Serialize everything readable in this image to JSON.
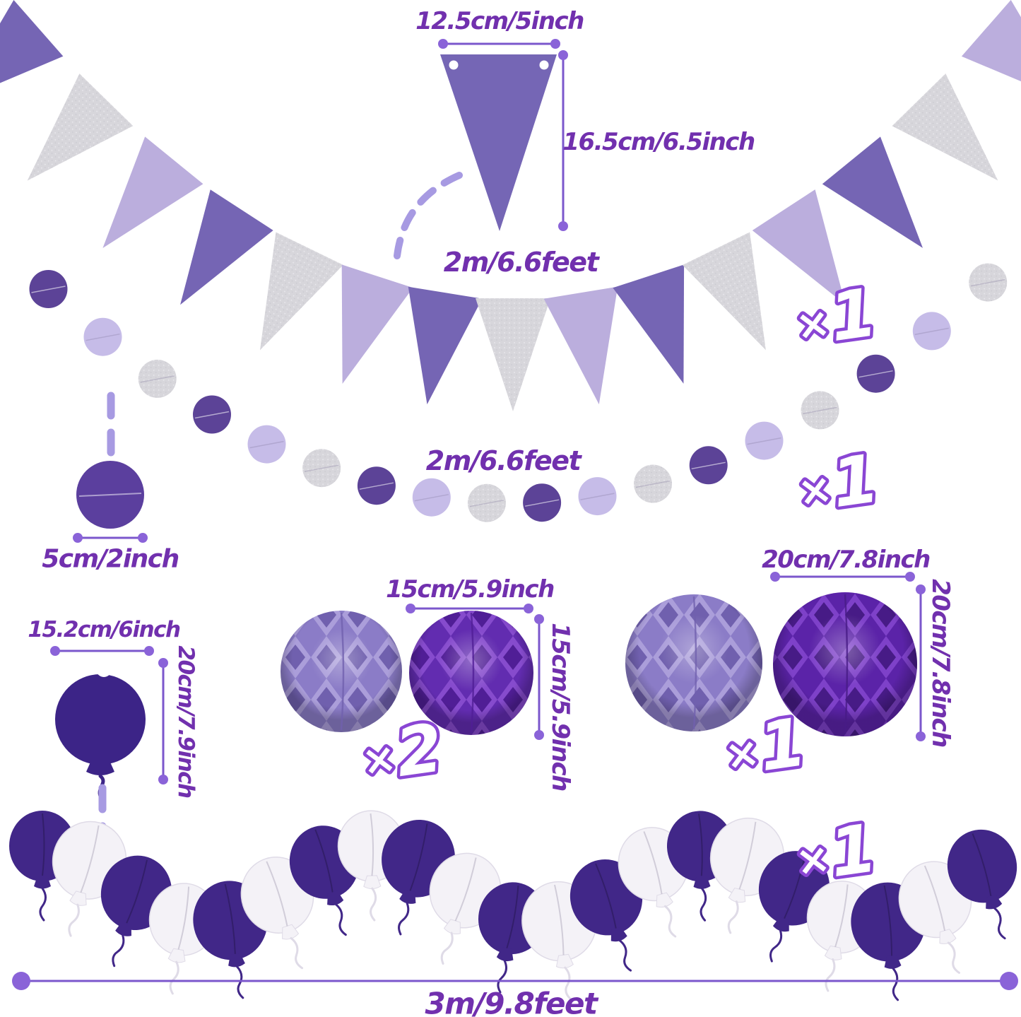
{
  "labels": {
    "flag_width": "12.5cm/5inch",
    "flag_height": "16.5cm/6.5inch",
    "banner_length": "2m/6.6feet",
    "dot_garland_length": "2m/6.6feet",
    "dot_size": "5cm/2inch",
    "cutout_width": "15.2cm/6inch",
    "cutout_height": "20cm/7.9inch",
    "honeycomb_small_width": "15cm/5.9inch",
    "honeycomb_small_height": "15cm/5.9inch",
    "honeycomb_large_width": "20cm/7.8inch",
    "honeycomb_large_height": "20cm/7.8inch",
    "balloon_garland_length": "3m/9.8feet"
  },
  "counts": {
    "banner": "×1",
    "dot_garland": "×1",
    "honeycomb_small": "×2",
    "honeycomb_large": "×1",
    "balloon_garland": "×1"
  },
  "banner": {
    "flag_count": 15,
    "cycle": [
      "purple",
      "silver",
      "lavender"
    ]
  },
  "dot_garland": {
    "dot_count": 18,
    "cycle": [
      "purple",
      "lavender",
      "silver"
    ],
    "dot_radius": 27
  },
  "balloon_garland": {
    "balloon_count": 21,
    "cycle": [
      "purple",
      "white"
    ]
  },
  "honeycombs": {
    "small": [
      "lavender",
      "purple"
    ],
    "large": [
      "lavender",
      "purple"
    ]
  },
  "colors": {
    "text": "#7130ae",
    "dim_line": "#7b57cc",
    "dim_dot": "#8a63d8",
    "dash": "#a79ae2",
    "marker_stroke": "#8a46d4",
    "flag_purple": "#7565b4",
    "flag_lavender": "#bbaedd",
    "silver_base": "#d7d6db",
    "silver_light": "#ebeaef",
    "silver_dark": "#c8c7cf",
    "detail_flag": "#7566b5",
    "dot_purple": "#5c4397",
    "dot_lavender": "#c6bce8",
    "dot_detail": "#5b3f9e",
    "cutout": "#3c2487",
    "hc_lavender": {
      "base": "#8b7cc7",
      "light": "#ab9eda",
      "dark": "#7060ae"
    },
    "hc_purple": {
      "base": "#622cb0",
      "light": "#864bcd",
      "dark": "#501e96"
    },
    "hc_purple_large": {
      "base": "#5b23a8",
      "light": "#7e41c9",
      "dark": "#471b86"
    },
    "balloon_purple": "#412788",
    "balloon_white": "#f4f2f7",
    "white_stroke": "#dfdbe7"
  }
}
